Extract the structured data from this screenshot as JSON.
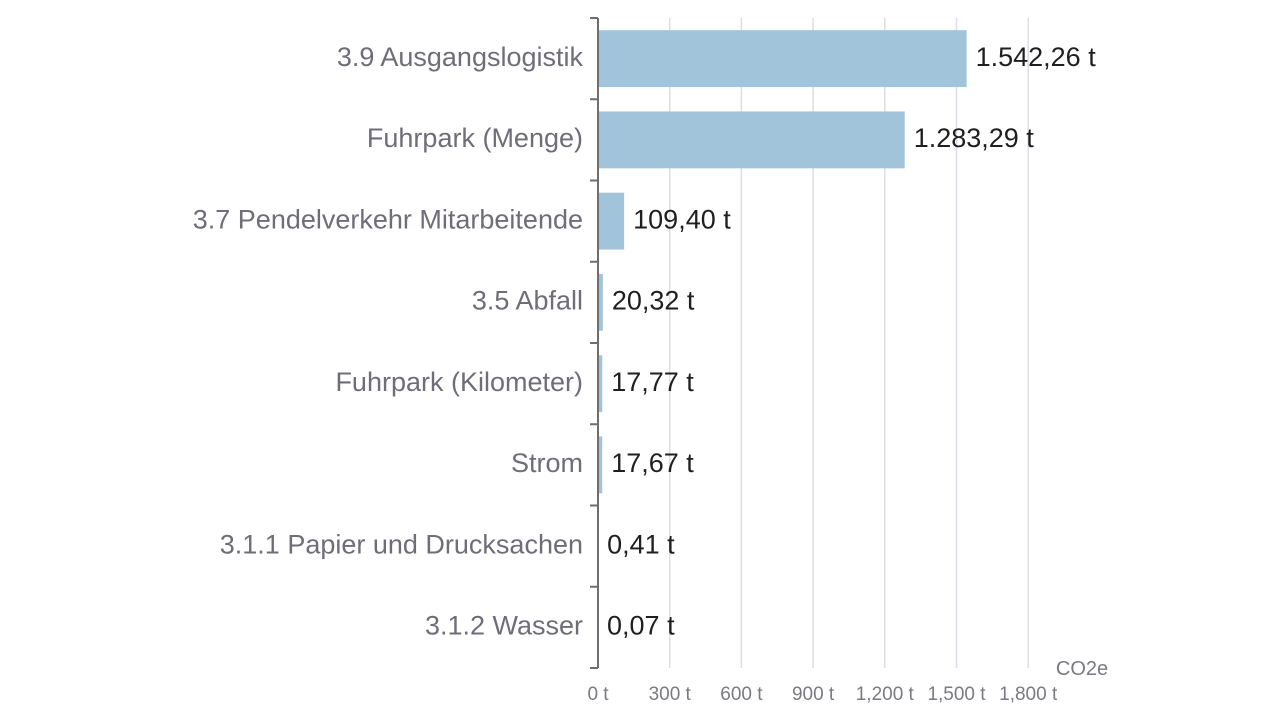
{
  "chart_data": {
    "type": "bar",
    "orientation": "horizontal",
    "categories": [
      "3.9 Ausgangslogistik",
      "Fuhrpark (Menge)",
      "3.7 Pendelverkehr Mitarbeitende",
      "3.5 Abfall",
      "Fuhrpark (Kilometer)",
      "Strom",
      "3.1.1 Papier und Drucksachen",
      "3.1.2 Wasser"
    ],
    "values": [
      1542.26,
      1283.29,
      109.4,
      20.32,
      17.77,
      17.67,
      0.41,
      0.07
    ],
    "value_labels": [
      "1.542,26 t",
      "1.283,29 t",
      "109,40 t",
      "20,32 t",
      "17,77 t",
      "17,67 t",
      "0,41 t",
      "0,07 t"
    ],
    "x_ticks": [
      0,
      300,
      600,
      900,
      1200,
      1500,
      1800
    ],
    "x_tick_labels": [
      "0 t",
      "300 t",
      "600 t",
      "900 t",
      "1,200 t",
      "1,500 t",
      "1,800 t"
    ],
    "xlim": [
      0,
      1800
    ],
    "unit_label": "CO2e",
    "bar_color": "#a2c4da",
    "grid": true
  }
}
